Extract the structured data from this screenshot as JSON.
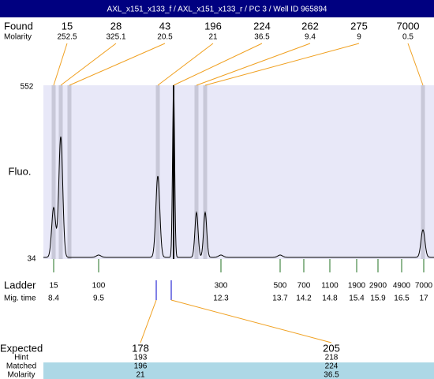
{
  "title": "AXL_x151_x133_f / AXL_x151_x133_r / PC 3 / Well ID 965894",
  "found": {
    "label": "Found",
    "molarity_label": "Molarity",
    "peaks": [
      {
        "size": 15,
        "molarity": 252.5
      },
      {
        "size": 28,
        "molarity": 325.1
      },
      {
        "size": 43,
        "molarity": 20.5
      },
      {
        "size": 196,
        "molarity": 21
      },
      {
        "size": 224,
        "molarity": 36.5
      },
      {
        "size": 262,
        "molarity": 9.4
      },
      {
        "size": 275,
        "molarity": 9
      },
      {
        "size": 7000,
        "molarity": 0.5
      }
    ]
  },
  "y_axis": {
    "label": "Fluo.",
    "max": 552,
    "min": 34
  },
  "ladder": {
    "label": "Ladder",
    "time_label": "Mig. time",
    "peaks": [
      {
        "size": 15,
        "time": 8.4
      },
      {
        "size": 100,
        "time": 9.5
      },
      {
        "size": 300,
        "time": 12.3
      },
      {
        "size": 500,
        "time": 13.7
      },
      {
        "size": 700,
        "time": 14.2
      },
      {
        "size": 1100,
        "time": 14.8
      },
      {
        "size": 1900,
        "time": 15.4
      },
      {
        "size": 2900,
        "time": 15.9
      },
      {
        "size": 4900,
        "time": 16.5
      },
      {
        "size": 7000,
        "time": 17
      }
    ]
  },
  "expected": {
    "label": "Expected",
    "hint_label": "Hint",
    "matched_label": "Matched",
    "molarity_label": "Molarity",
    "items": [
      {
        "expected": 178,
        "hint": 193,
        "matched": 196,
        "molarity": 21
      },
      {
        "expected": 205,
        "hint": 218,
        "matched": 224,
        "molarity": 36.5
      }
    ]
  }
}
